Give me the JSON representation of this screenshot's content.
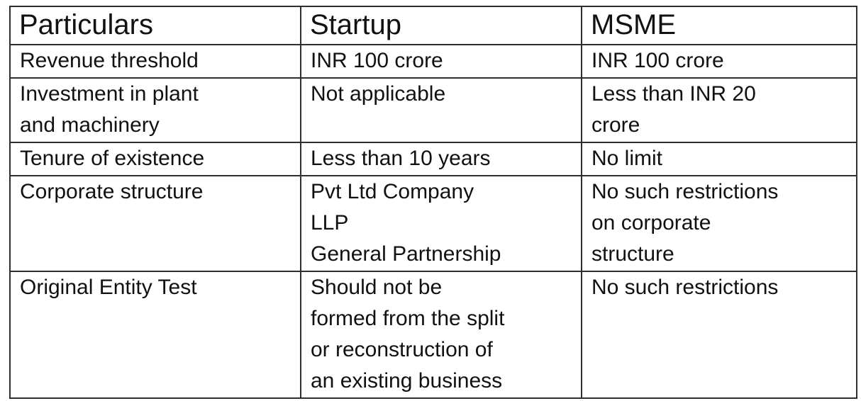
{
  "table": {
    "columns": [
      "Particulars",
      "Startup",
      "MSME"
    ],
    "rows": [
      {
        "cells": [
          "Revenue threshold",
          "INR 100 crore",
          "INR 100 crore"
        ]
      },
      {
        "cells": [
          "Investment in plant\nand machinery",
          "Not applicable",
          "Less than INR 20\ncrore"
        ]
      },
      {
        "cells": [
          "Tenure of existence",
          "Less than 10 years",
          "No limit"
        ]
      },
      {
        "cells": [
          "Corporate structure",
          "Pvt Ltd Company\nLLP\nGeneral Partnership",
          "No such restrictions\non corporate\nstructure"
        ]
      },
      {
        "cells": [
          "Original Entity Test",
          "Should not be\nformed from the split\nor reconstruction of\nan existing business",
          "No such restrictions"
        ]
      }
    ]
  },
  "colors": {
    "text": "#111111",
    "border": "#2e2e2e",
    "background": "#ffffff"
  }
}
